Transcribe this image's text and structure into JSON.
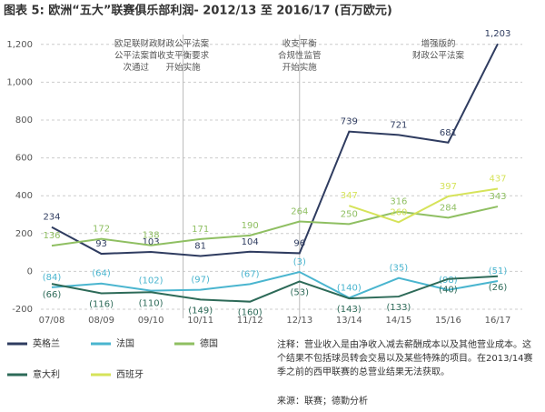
{
  "chart_data": {
    "type": "line",
    "title": "图表 5: 欧洲“五大”联赛俱乐部利润- 2012/13 至 2016/17 (百万欧元)",
    "categories": [
      "07/08",
      "08/09",
      "09/10",
      "10/11",
      "11/12",
      "12/13",
      "13/14",
      "14/15",
      "15/16",
      "16/17"
    ],
    "series": [
      {
        "name": "英格兰",
        "color": "#2f3c60",
        "values": [
          234,
          93,
          103,
          81,
          104,
          96,
          739,
          721,
          681,
          1203
        ],
        "value_labels": [
          "234",
          "93",
          "103",
          "81",
          "104",
          "96",
          "739",
          "721",
          "681",
          "1,203"
        ]
      },
      {
        "name": "法国",
        "color": "#4ab5cf",
        "values": [
          -84,
          -64,
          -102,
          -97,
          -67,
          -3,
          -140,
          -35,
          -98,
          -51
        ],
        "value_labels": [
          "(84)",
          "(64)",
          "(102)",
          "(97)",
          "(67)",
          "(3)",
          "(140)",
          "(35)",
          "(98)",
          "(51)"
        ]
      },
      {
        "name": "德国",
        "color": "#8fbf62",
        "values": [
          136,
          172,
          138,
          171,
          190,
          264,
          250,
          316,
          284,
          343
        ]
      },
      {
        "name": "意大利",
        "color": "#2d6a58",
        "values": [
          -66,
          -116,
          -110,
          -149,
          -160,
          -53,
          -143,
          -133,
          -40,
          -26
        ],
        "value_labels": [
          "(66)",
          "(116)",
          "(110)",
          "(149)",
          "(160)",
          "(53)",
          "(143)",
          "(133)",
          "(40)",
          "(26)"
        ]
      },
      {
        "name": "西班牙",
        "color": "#d6e35a",
        "values": [
          null,
          null,
          null,
          null,
          null,
          null,
          347,
          260,
          397,
          437
        ]
      }
    ],
    "ylim": [
      -200,
      1300
    ],
    "yticks": [
      -200,
      0,
      200,
      400,
      600,
      800,
      {
        "value": 1000,
        "label": "1,000"
      },
      {
        "value": 1200,
        "label": "1,200"
      }
    ],
    "grid": true,
    "annotations": [
      "欧足联财政\n公平法案首\n次通过",
      "财政公平法案\n收支平衡要求\n开始实施",
      "收支平衡\n合规性监管\n开始实施",
      "增强版的\n财政公平法案"
    ],
    "note": "注释：营业收入是由净收入减去薪酬成本以及其他营业成本。这个结果不包括球员转会交易以及某些特殊的项目。在2013/14赛季之前的西甲联赛的总营业结果无法获取。",
    "source": "来源：联赛；德勤分析"
  }
}
